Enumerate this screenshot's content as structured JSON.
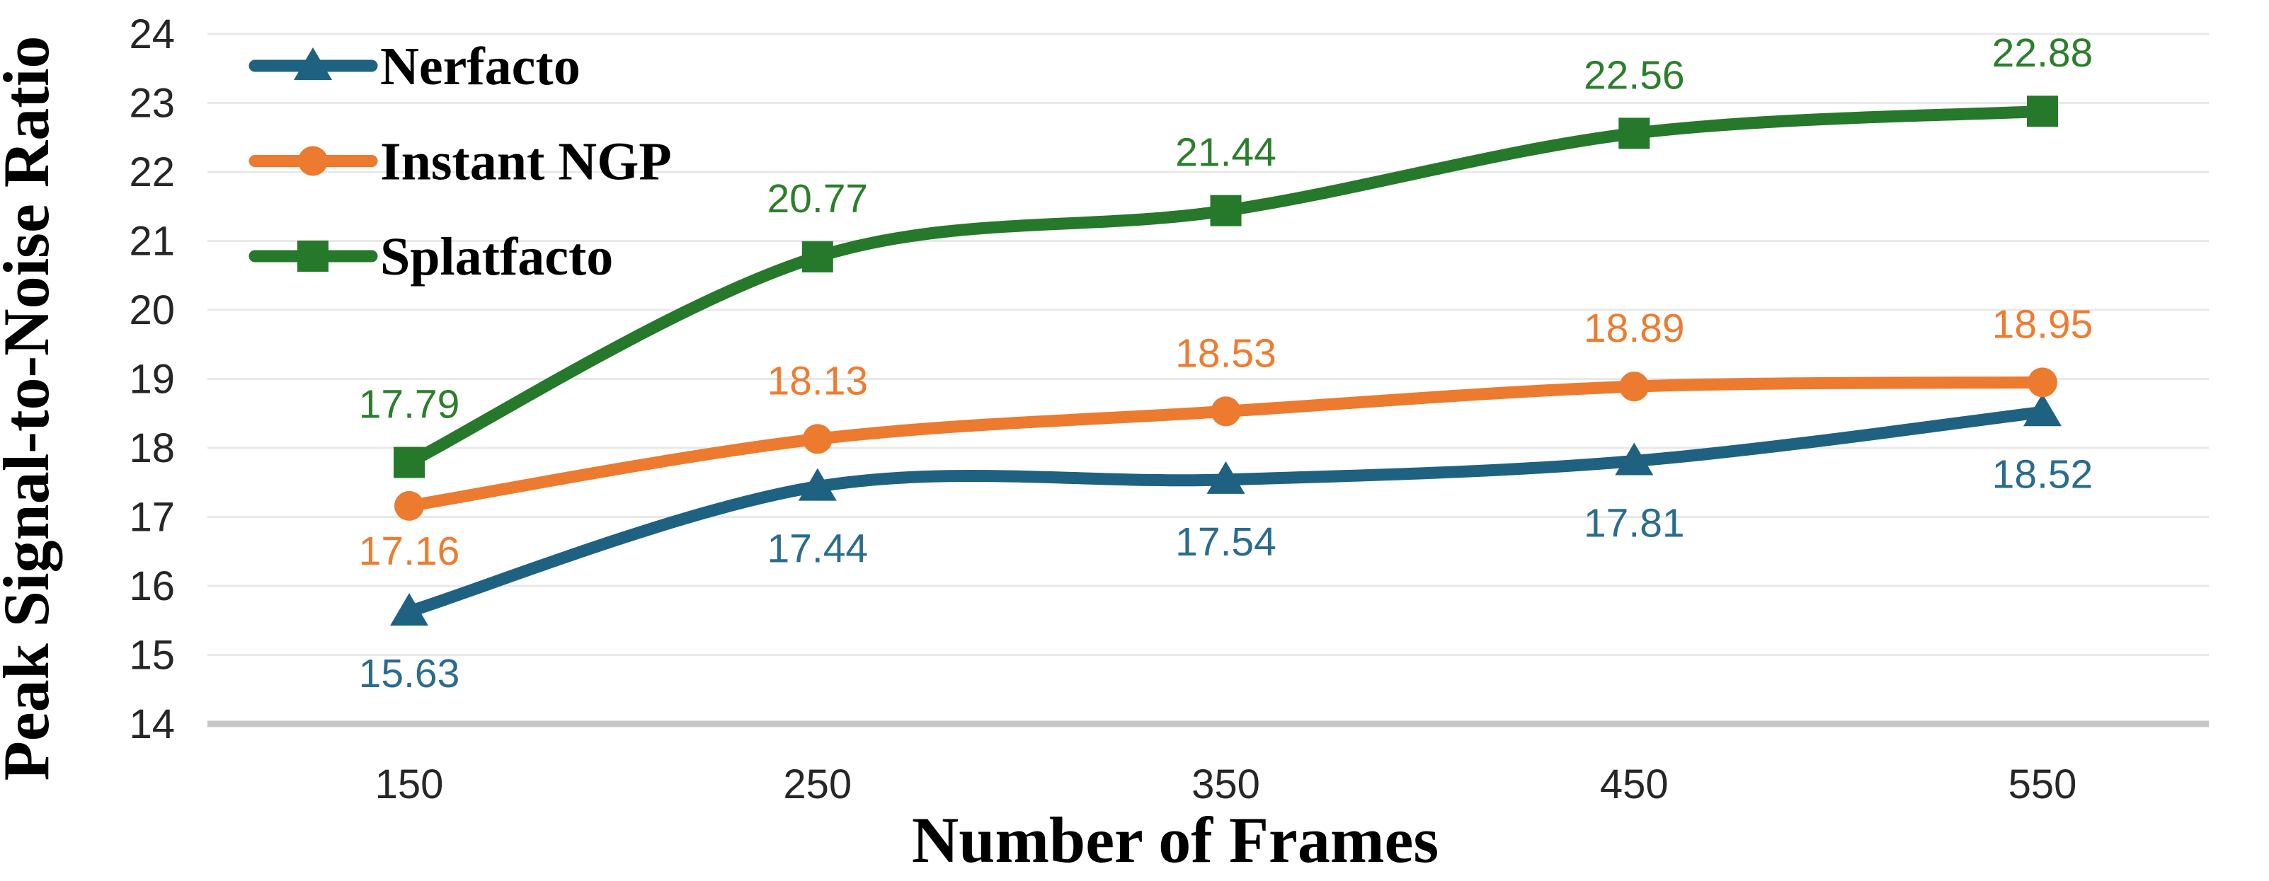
{
  "chart_data": {
    "type": "line",
    "title": "",
    "xlabel": "Number of Frames",
    "ylabel": "Peak Signal-to-Noise Ratio",
    "categories": [
      150,
      250,
      350,
      450,
      550
    ],
    "ylim": [
      14,
      24
    ],
    "ytick_step": 1,
    "yticks": [
      14,
      15,
      16,
      17,
      18,
      19,
      20,
      21,
      22,
      23,
      24
    ],
    "grid": "horizontal",
    "legend_position": "top-left-inside",
    "line_style": "smooth",
    "colors": {
      "background": "#ffffff",
      "gridline": "#e9e9e9",
      "axis_baseline": "#c6c6c6",
      "tick_text": "#262626"
    },
    "series": [
      {
        "name": "Nerfacto",
        "marker": "triangle",
        "color": "#1f6181",
        "label_color": "#2a6c8e",
        "values": [
          15.63,
          17.44,
          17.54,
          17.81,
          18.52
        ],
        "data_labels": [
          "15.63",
          "17.44",
          "17.54",
          "17.81",
          "18.52"
        ],
        "label_side": "below",
        "label_side_overrides": {}
      },
      {
        "name": "Instant NGP",
        "marker": "circle",
        "color": "#ec7a2f",
        "label_color": "#ee7c30",
        "values": [
          17.16,
          18.13,
          18.53,
          18.89,
          18.95
        ],
        "data_labels": [
          "17.16",
          "18.13",
          "18.53",
          "18.89",
          "18.95"
        ],
        "label_side": "above",
        "label_side_overrides": {
          "0": "below"
        }
      },
      {
        "name": "Splatfacto",
        "marker": "square",
        "color": "#26782a",
        "label_color": "#2b7f2b",
        "values": [
          17.79,
          20.77,
          21.44,
          22.56,
          22.88
        ],
        "data_labels": [
          "17.79",
          "20.77",
          "21.44",
          "22.56",
          "22.88"
        ],
        "label_side": "above",
        "label_side_overrides": {}
      }
    ]
  }
}
